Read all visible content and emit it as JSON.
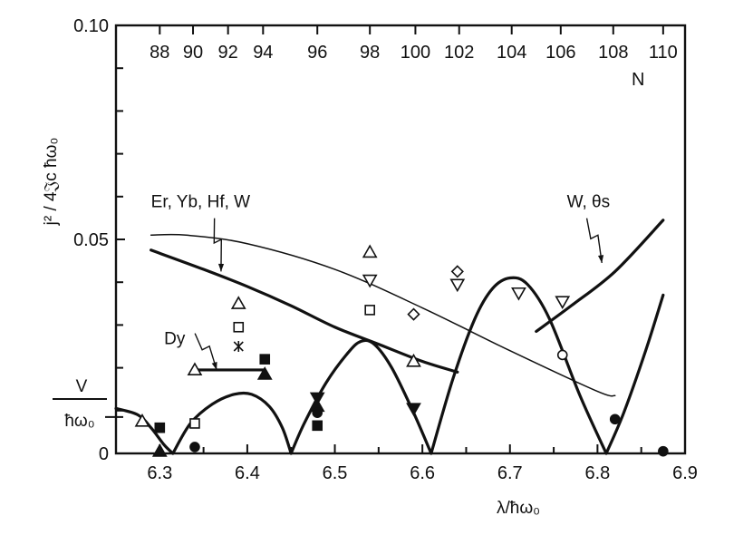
{
  "chart_data": {
    "type": "line",
    "title": "",
    "xlabel": "λ/ħω₀",
    "ylabel": "j² / 4𝔍c ħω₀",
    "xlim": [
      6.25,
      6.9
    ],
    "ylim": [
      0,
      0.1
    ],
    "x_ticks": [
      "6.3",
      "6.4",
      "6.5",
      "6.6",
      "6.7",
      "6.8",
      "6.9"
    ],
    "y_ticks": [
      {
        "value": 0,
        "label": "0"
      },
      {
        "value": 0.05,
        "label": "0.05"
      },
      {
        "value": 0.1,
        "label": "0.10"
      }
    ],
    "y_minor_ticks": [
      0.01,
      0.02,
      0.03,
      0.04,
      0.06,
      0.07,
      0.08,
      0.09
    ],
    "v_label": {
      "numerator": "V",
      "denominator": "ħω₀",
      "value": 0.0085
    },
    "top_axis": {
      "title": "N",
      "ticks": [
        {
          "label": "88",
          "x": 6.3
        },
        {
          "label": "90",
          "x": 6.338
        },
        {
          "label": "92",
          "x": 6.378
        },
        {
          "label": "94",
          "x": 6.418
        },
        {
          "label": "96",
          "x": 6.48
        },
        {
          "label": "98",
          "x": 6.54
        },
        {
          "label": "100",
          "x": 6.592
        },
        {
          "label": "102",
          "x": 6.642
        },
        {
          "label": "104",
          "x": 6.702
        },
        {
          "label": "106",
          "x": 6.758
        },
        {
          "label": "108",
          "x": 6.818
        },
        {
          "label": "110",
          "x": 6.875
        }
      ]
    },
    "series": [
      {
        "kind": "heavy",
        "points": [
          [
            6.25,
            0.0105
          ],
          [
            6.275,
            0.009
          ],
          [
            6.29,
            0.006
          ],
          [
            6.305,
            0.002
          ],
          [
            6.315,
            0
          ]
        ]
      },
      {
        "kind": "heavy",
        "points": [
          [
            6.315,
            0
          ],
          [
            6.335,
            0.007
          ],
          [
            6.36,
            0.0115
          ],
          [
            6.385,
            0.0138
          ],
          [
            6.405,
            0.0138
          ],
          [
            6.425,
            0.011
          ],
          [
            6.44,
            0.006
          ],
          [
            6.45,
            0
          ]
        ]
      },
      {
        "kind": "heavy",
        "points": [
          [
            6.45,
            0
          ],
          [
            6.465,
            0.007
          ],
          [
            6.49,
            0.0165
          ],
          [
            6.515,
            0.0235
          ],
          [
            6.53,
            0.0262
          ],
          [
            6.545,
            0.0255
          ],
          [
            6.565,
            0.02
          ],
          [
            6.59,
            0.0095
          ],
          [
            6.61,
            0
          ]
        ]
      },
      {
        "kind": "heavy",
        "points": [
          [
            6.61,
            0
          ],
          [
            6.635,
            0.0175
          ],
          [
            6.66,
            0.0315
          ],
          [
            6.68,
            0.0385
          ],
          [
            6.7,
            0.041
          ],
          [
            6.72,
            0.0395
          ],
          [
            6.745,
            0.0315
          ],
          [
            6.78,
            0.0135
          ],
          [
            6.81,
            0
          ]
        ]
      },
      {
        "kind": "heavy",
        "points": [
          [
            6.81,
            0
          ],
          [
            6.83,
            0.0095
          ],
          [
            6.855,
            0.024
          ],
          [
            6.875,
            0.037
          ]
        ]
      },
      {
        "kind": "heavy",
        "points": [
          [
            6.29,
            0.0475
          ],
          [
            6.35,
            0.043
          ],
          [
            6.4,
            0.039
          ],
          [
            6.45,
            0.0345
          ],
          [
            6.5,
            0.0295
          ],
          [
            6.55,
            0.0255
          ],
          [
            6.6,
            0.0215
          ],
          [
            6.64,
            0.019
          ]
        ]
      },
      {
        "kind": "heavy",
        "points": [
          [
            6.73,
            0.0285
          ],
          [
            6.77,
            0.0345
          ],
          [
            6.82,
            0.0425
          ],
          [
            6.875,
            0.0545
          ]
        ]
      },
      {
        "kind": "heavy",
        "points": [
          [
            6.34,
            0.0195
          ],
          [
            6.42,
            0.0195
          ]
        ]
      },
      {
        "kind": "thin",
        "points": [
          [
            6.29,
            0.051
          ],
          [
            6.33,
            0.051
          ],
          [
            6.4,
            0.049
          ],
          [
            6.5,
            0.043
          ],
          [
            6.6,
            0.034
          ],
          [
            6.7,
            0.024
          ],
          [
            6.8,
            0.0145
          ],
          [
            6.82,
            0.0135
          ]
        ]
      }
    ],
    "markers": [
      {
        "shape": "triangle-up",
        "x": 6.28,
        "y": 0.0075
      },
      {
        "shape": "square-filled",
        "x": 6.3,
        "y": 0.006
      },
      {
        "shape": "triangle-up-filled",
        "x": 6.3,
        "y": 0.0005
      },
      {
        "shape": "circle-filled",
        "x": 6.34,
        "y": 0.0015
      },
      {
        "shape": "square",
        "x": 6.34,
        "y": 0.007
      },
      {
        "shape": "triangle-up",
        "x": 6.34,
        "y": 0.0195
      },
      {
        "shape": "triangle-up",
        "x": 6.39,
        "y": 0.035
      },
      {
        "shape": "square",
        "x": 6.39,
        "y": 0.0295
      },
      {
        "shape": "asterisk",
        "x": 6.39,
        "y": 0.025
      },
      {
        "shape": "square-filled",
        "x": 6.42,
        "y": 0.022
      },
      {
        "shape": "triangle-up-filled",
        "x": 6.42,
        "y": 0.0185
      },
      {
        "shape": "triangle-down-filled",
        "x": 6.48,
        "y": 0.013
      },
      {
        "shape": "triangle-up-filled",
        "x": 6.48,
        "y": 0.011
      },
      {
        "shape": "circle-filled",
        "x": 6.48,
        "y": 0.0095
      },
      {
        "shape": "square-filled",
        "x": 6.48,
        "y": 0.0065
      },
      {
        "shape": "triangle-up",
        "x": 6.54,
        "y": 0.047
      },
      {
        "shape": "triangle-down",
        "x": 6.54,
        "y": 0.0405
      },
      {
        "shape": "square",
        "x": 6.54,
        "y": 0.0335
      },
      {
        "shape": "diamond",
        "x": 6.59,
        "y": 0.0325
      },
      {
        "shape": "triangle-up",
        "x": 6.59,
        "y": 0.0215
      },
      {
        "shape": "triangle-down-filled",
        "x": 6.59,
        "y": 0.0105
      },
      {
        "shape": "diamond",
        "x": 6.64,
        "y": 0.0425
      },
      {
        "shape": "triangle-down",
        "x": 6.64,
        "y": 0.0395
      },
      {
        "shape": "triangle-down",
        "x": 6.71,
        "y": 0.0375
      },
      {
        "shape": "triangle-down",
        "x": 6.76,
        "y": 0.0355
      },
      {
        "shape": "circle",
        "x": 6.76,
        "y": 0.023
      },
      {
        "shape": "circle-filled",
        "x": 6.82,
        "y": 0.008
      },
      {
        "shape": "circle-filled",
        "x": 6.875,
        "y": 0.0005
      }
    ],
    "annotations": [
      {
        "text": "Er, Yb, Hf, W",
        "x": 6.29,
        "y": 0.0575,
        "arrow_to": [
          6.37,
          0.0425
        ]
      },
      {
        "text": "W, θs",
        "x": 6.765,
        "y": 0.0575,
        "arrow_to": [
          6.805,
          0.0445
        ]
      },
      {
        "text": "Dy",
        "x": 6.305,
        "y": 0.0255,
        "arrow_to": [
          6.365,
          0.0195
        ]
      }
    ],
    "grid": false,
    "legend": "none"
  }
}
